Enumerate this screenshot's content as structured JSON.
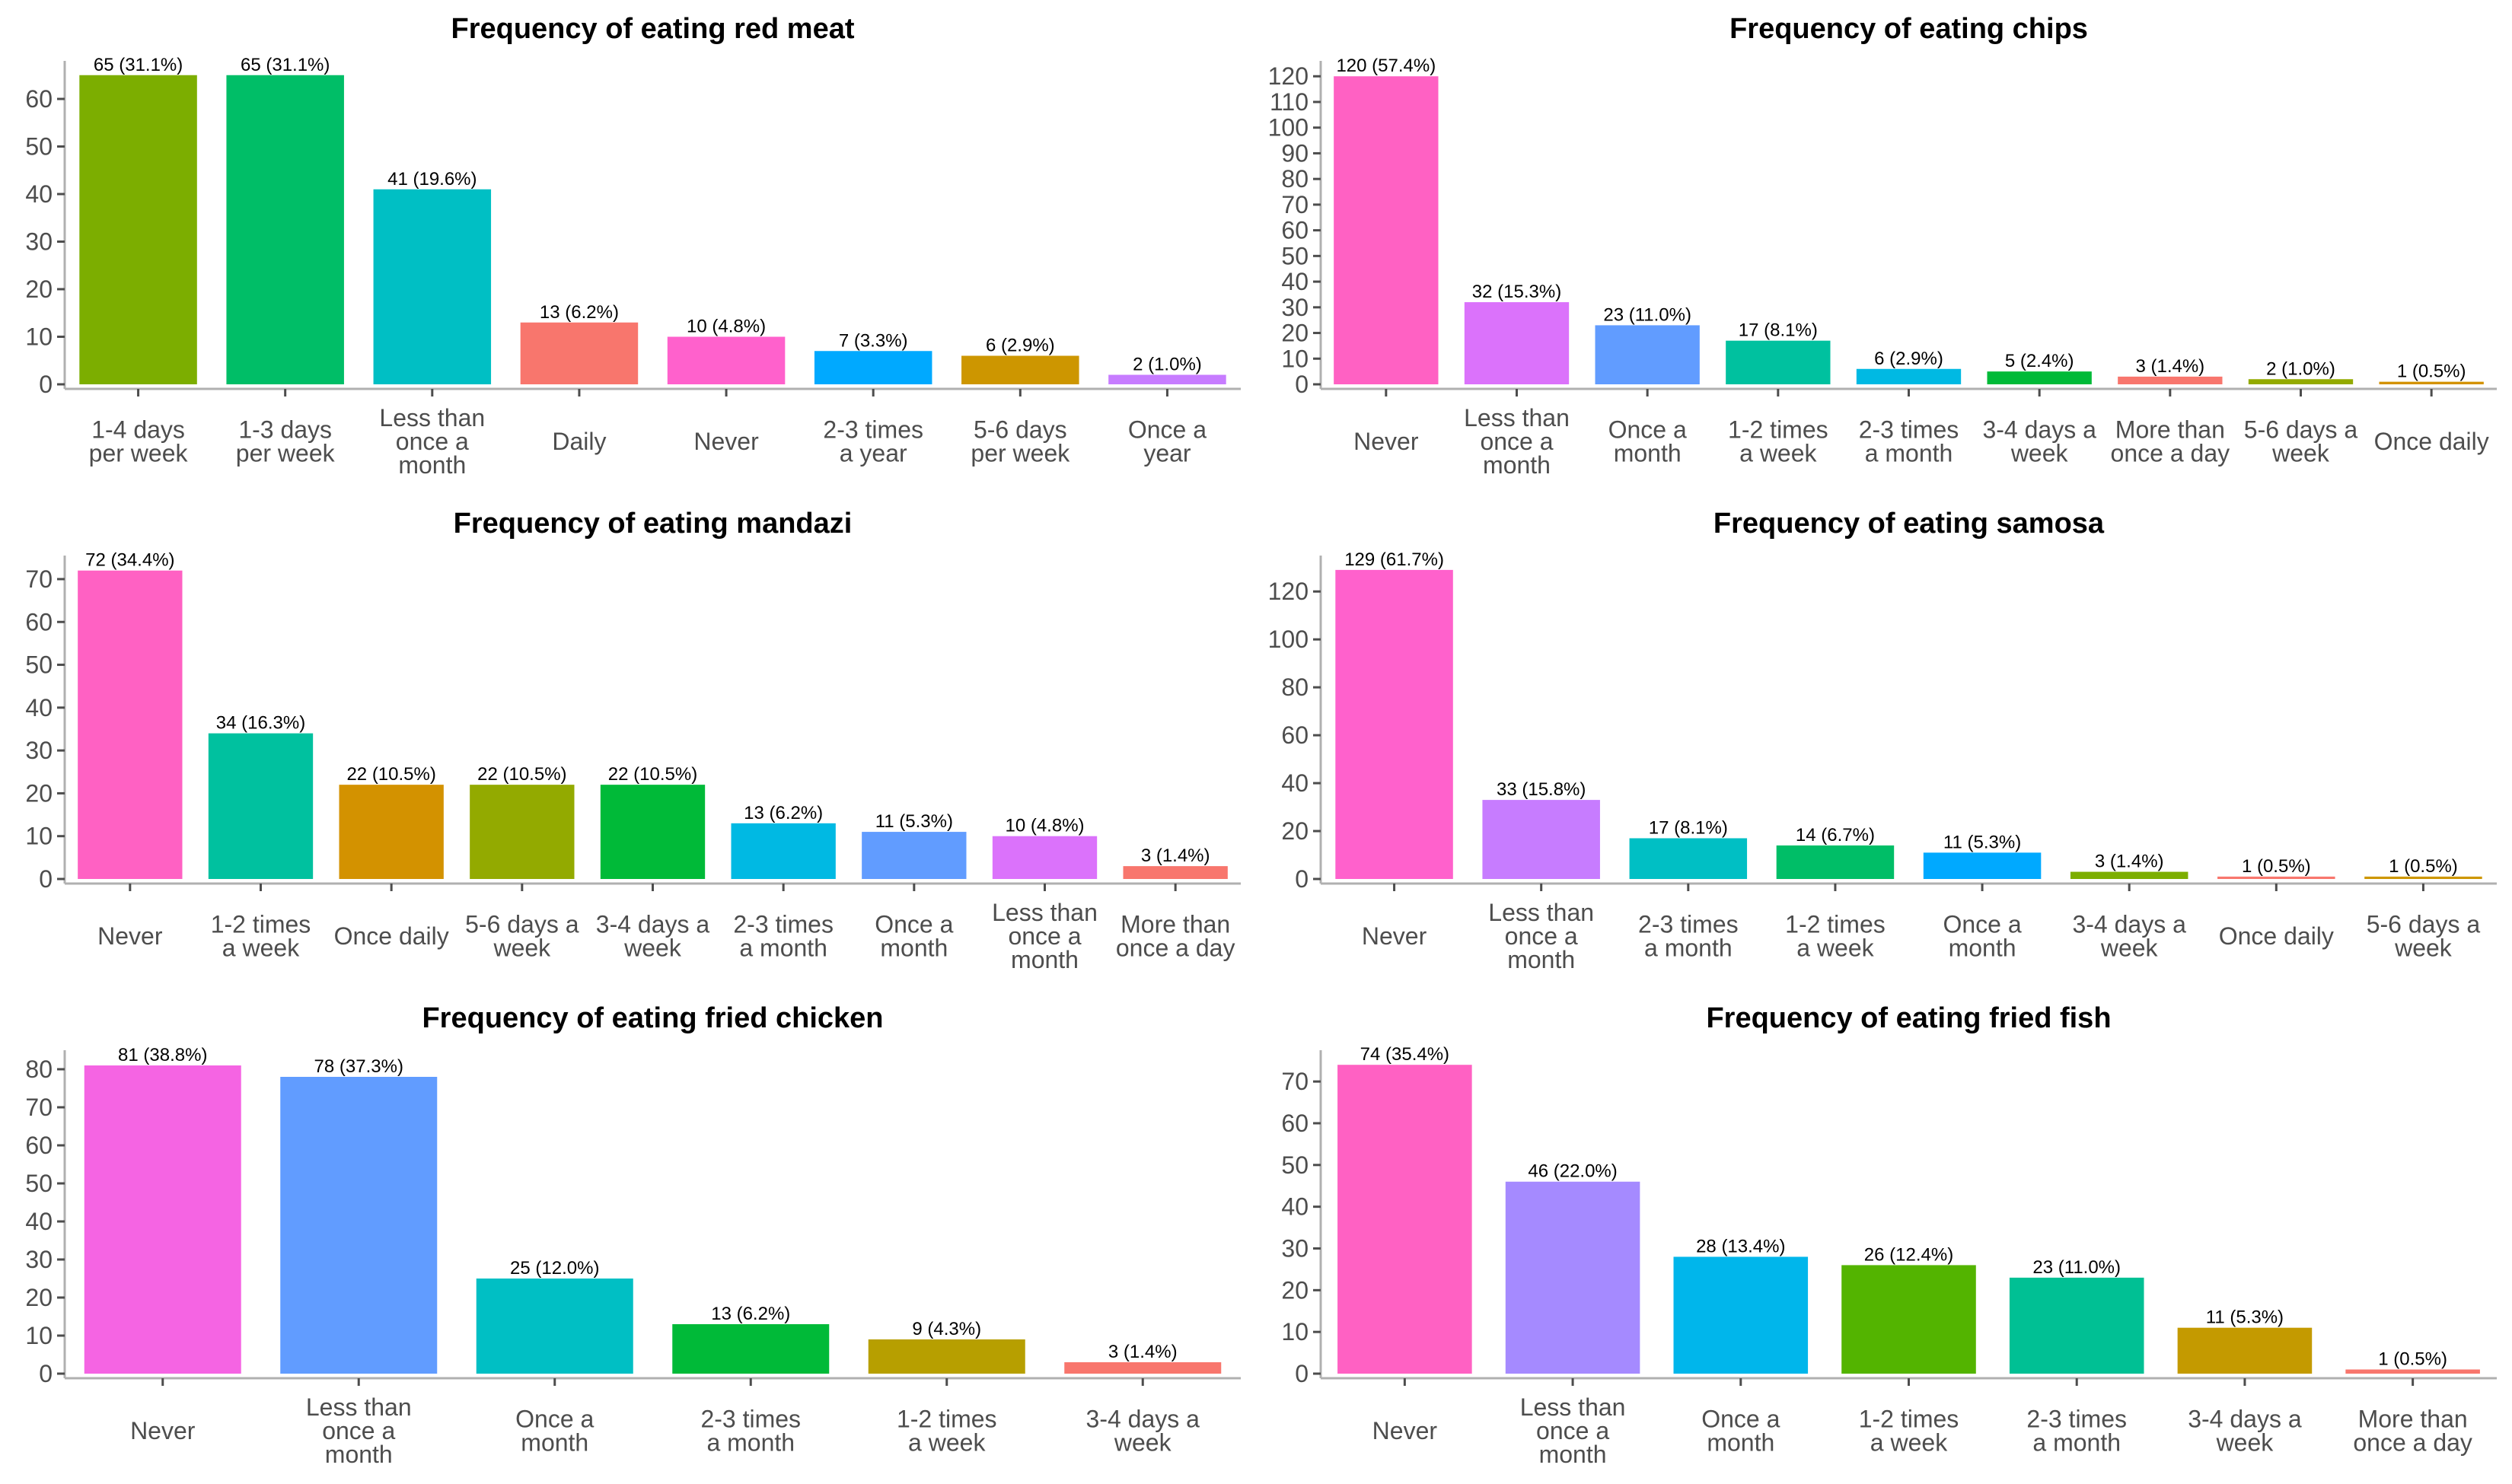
{
  "chart_data": [
    {
      "type": "bar",
      "title": "Frequency of eating red meat",
      "ylim": [
        0,
        68
      ],
      "yticks": [
        0,
        10,
        20,
        30,
        40,
        50,
        60
      ],
      "categories": [
        "1-4 days per week",
        "1-3 days per week",
        "Less than once a month",
        "Daily",
        "Never",
        "2-3 times a year",
        "5-6 days per week",
        "Once a year"
      ],
      "tick_lines": [
        [
          "1-4 days",
          "per week"
        ],
        [
          "1-3 days",
          "per week"
        ],
        [
          "Less than",
          "once a",
          "month"
        ],
        [
          "Daily"
        ],
        [
          "Never"
        ],
        [
          "2-3 times",
          "a year"
        ],
        [
          "5-6 days",
          "per week"
        ],
        [
          "Once a",
          "year"
        ]
      ],
      "values": [
        65,
        65,
        41,
        13,
        10,
        7,
        6,
        2
      ],
      "data_labels": [
        "65 (31.1%)",
        "65 (31.1%)",
        "41 (19.6%)",
        "13 (6.2%)",
        "10 (4.8%)",
        "7 (3.3%)",
        "6 (2.9%)",
        "2 (1.0%)"
      ],
      "colors": [
        "#7CAE00",
        "#00BE67",
        "#00BFC4",
        "#F8766D",
        "#FF61CC",
        "#00A9FF",
        "#CD9600",
        "#C77CFF"
      ],
      "grid": false,
      "legend": "none"
    },
    {
      "type": "bar",
      "title": "Frequency of eating chips",
      "ylim": [
        0,
        126
      ],
      "yticks": [
        0,
        10,
        20,
        30,
        40,
        50,
        60,
        70,
        80,
        90,
        100,
        110,
        120
      ],
      "categories": [
        "Never",
        "Less than once a month",
        "Once a month",
        "1-2 times a week",
        "2-3 times a month",
        "3-4 days a week",
        "More than once a day",
        "5-6 days a week",
        "Once daily"
      ],
      "tick_lines": [
        [
          "Never"
        ],
        [
          "Less than",
          "once a",
          "month"
        ],
        [
          "Once a",
          "month"
        ],
        [
          "1-2 times",
          "a week"
        ],
        [
          "2-3 times",
          "a month"
        ],
        [
          "3-4 days a",
          "week"
        ],
        [
          "More than",
          "once a day"
        ],
        [
          "5-6 days a",
          "week"
        ],
        [
          "Once daily"
        ]
      ],
      "values": [
        120,
        32,
        23,
        17,
        6,
        5,
        3,
        2,
        1
      ],
      "data_labels": [
        "120 (57.4%)",
        "32 (15.3%)",
        "23 (11.0%)",
        "17 (8.1%)",
        "6 (2.9%)",
        "5 (2.4%)",
        "3 (1.4%)",
        "2 (1.0%)",
        "1 (0.5%)"
      ],
      "colors": [
        "#FF61C3",
        "#DB72FB",
        "#619CFF",
        "#00C19F",
        "#00B9E3",
        "#00BA38",
        "#F8766D",
        "#93AA00",
        "#D39200"
      ],
      "grid": false,
      "legend": "none"
    },
    {
      "type": "bar",
      "title": "Frequency of eating mandazi",
      "ylim": [
        0,
        75.5
      ],
      "yticks": [
        0,
        10,
        20,
        30,
        40,
        50,
        60,
        70
      ],
      "categories": [
        "Never",
        "1-2 times a week",
        "Once daily",
        "5-6 days a week",
        "3-4 days a week",
        "2-3 times a month",
        "Once a month",
        "Less than once a month",
        "More than once a day"
      ],
      "tick_lines": [
        [
          "Never"
        ],
        [
          "1-2 times",
          "a week"
        ],
        [
          "Once daily"
        ],
        [
          "5-6 days a",
          "week"
        ],
        [
          "3-4 days a",
          "week"
        ],
        [
          "2-3 times",
          "a month"
        ],
        [
          "Once a",
          "month"
        ],
        [
          "Less than",
          "once a",
          "month"
        ],
        [
          "More than",
          "once a day"
        ]
      ],
      "values": [
        72,
        34,
        22,
        22,
        22,
        13,
        11,
        10,
        3
      ],
      "data_labels": [
        "72 (34.4%)",
        "34 (16.3%)",
        "22 (10.5%)",
        "22 (10.5%)",
        "22 (10.5%)",
        "13 (6.2%)",
        "11 (5.3%)",
        "10 (4.8%)",
        "3 (1.4%)"
      ],
      "colors": [
        "#FF61C3",
        "#00C19F",
        "#D39200",
        "#93AA00",
        "#00BA38",
        "#00B9E3",
        "#619CFF",
        "#DB72FB",
        "#F8766D"
      ],
      "grid": false,
      "legend": "none"
    },
    {
      "type": "bar",
      "title": "Frequency of eating samosa",
      "ylim": [
        0,
        135
      ],
      "yticks": [
        0,
        20,
        40,
        60,
        80,
        100,
        120
      ],
      "categories": [
        "Never",
        "Less than once a month",
        "2-3 times a month",
        "1-2 times a week",
        "Once a month",
        "3-4 days a week",
        "Once daily",
        "5-6 days a week"
      ],
      "tick_lines": [
        [
          "Never"
        ],
        [
          "Less than",
          "once a",
          "month"
        ],
        [
          "2-3 times",
          "a month"
        ],
        [
          "1-2 times",
          "a week"
        ],
        [
          "Once a",
          "month"
        ],
        [
          "3-4 days a",
          "week"
        ],
        [
          "Once daily"
        ],
        [
          "5-6 days a",
          "week"
        ]
      ],
      "values": [
        129,
        33,
        17,
        14,
        11,
        3,
        1,
        1
      ],
      "data_labels": [
        "129 (61.7%)",
        "33 (15.8%)",
        "17 (8.1%)",
        "14 (6.7%)",
        "11 (5.3%)",
        "3 (1.4%)",
        "1 (0.5%)",
        "1 (0.5%)"
      ],
      "colors": [
        "#FF61CC",
        "#C77CFF",
        "#00BFC4",
        "#00BE67",
        "#00A9FF",
        "#7CAE00",
        "#F8766D",
        "#CD9600"
      ],
      "grid": false,
      "legend": "none"
    },
    {
      "type": "bar",
      "title": "Frequency of eating fried chicken",
      "ylim": [
        0,
        85
      ],
      "yticks": [
        0,
        10,
        20,
        30,
        40,
        50,
        60,
        70,
        80
      ],
      "categories": [
        "Never",
        "Less than once a month",
        "Once a month",
        "2-3 times a month",
        "1-2 times a week",
        "3-4 days a week"
      ],
      "tick_lines": [
        [
          "Never"
        ],
        [
          "Less than",
          "once a",
          "month"
        ],
        [
          "Once a",
          "month"
        ],
        [
          "2-3 times",
          "a month"
        ],
        [
          "1-2 times",
          "a week"
        ],
        [
          "3-4 days a",
          "week"
        ]
      ],
      "values": [
        81,
        78,
        25,
        13,
        9,
        3
      ],
      "data_labels": [
        "81 (38.8%)",
        "78 (37.3%)",
        "25 (12.0%)",
        "13 (6.2%)",
        "9 (4.3%)",
        "3 (1.4%)"
      ],
      "colors": [
        "#F564E3",
        "#619CFF",
        "#00BFC4",
        "#00BA38",
        "#B79F00",
        "#F8766D"
      ],
      "grid": false,
      "legend": "none"
    },
    {
      "type": "bar",
      "title": "Frequency of eating fried fish",
      "ylim": [
        0,
        77.5
      ],
      "yticks": [
        0,
        10,
        20,
        30,
        40,
        50,
        60,
        70
      ],
      "categories": [
        "Never",
        "Less than once a month",
        "Once a month",
        "1-2 times a week",
        "2-3 times a month",
        "3-4 days a week",
        "More than once a day"
      ],
      "tick_lines": [
        [
          "Never"
        ],
        [
          "Less than",
          "once a",
          "month"
        ],
        [
          "Once a",
          "month"
        ],
        [
          "1-2 times",
          "a week"
        ],
        [
          "2-3 times",
          "a month"
        ],
        [
          "3-4 days a",
          "week"
        ],
        [
          "More than",
          "once a day"
        ]
      ],
      "values": [
        74,
        46,
        28,
        26,
        23,
        11,
        1
      ],
      "data_labels": [
        "74 (35.4%)",
        "46 (22.0%)",
        "28 (13.4%)",
        "26 (12.4%)",
        "23 (11.0%)",
        "11 (5.3%)",
        "1 (0.5%)"
      ],
      "colors": [
        "#FF61C3",
        "#A58AFF",
        "#00B6EB",
        "#53B400",
        "#00C094",
        "#C49A00",
        "#F8766D"
      ],
      "grid": false,
      "legend": "none"
    }
  ]
}
